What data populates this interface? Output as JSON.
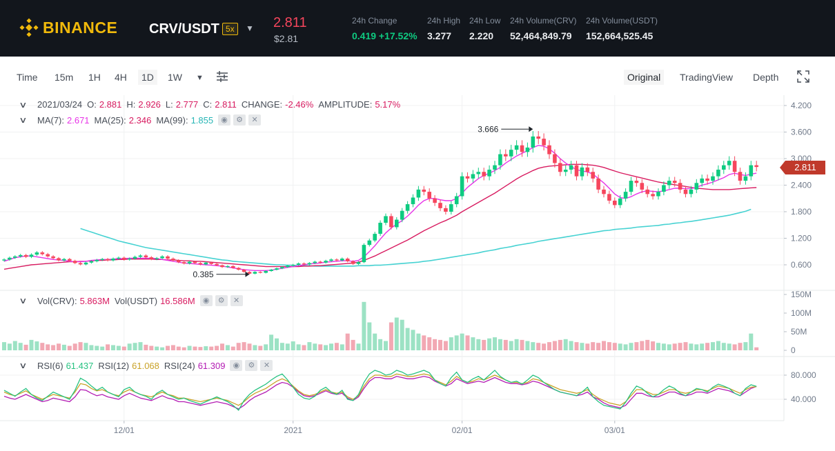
{
  "header": {
    "logo_text": "BINANCE",
    "pair": "CRV/USDT",
    "leverage": "5x",
    "last_price": "2.811",
    "last_price_usd": "$2.81",
    "stats": [
      {
        "label": "24h Change",
        "value": "0.419 +17.52%",
        "up": true
      },
      {
        "label": "24h High",
        "value": "3.277"
      },
      {
        "label": "24h Low",
        "value": "2.220"
      },
      {
        "label": "24h Volume(CRV)",
        "value": "52,464,849.79"
      },
      {
        "label": "24h Volume(USDT)",
        "value": "152,664,525.45"
      }
    ]
  },
  "toolbar": {
    "intervals": [
      "Time",
      "15m",
      "1H",
      "4H",
      "1D",
      "1W"
    ],
    "active_interval": "1D",
    "views": [
      "Original",
      "TradingView",
      "Depth"
    ],
    "active_view": "Original"
  },
  "ohlc_legend": {
    "date": "2021/03/24",
    "o_label": "O:",
    "o": "2.881",
    "h_label": "H:",
    "h": "2.926",
    "l_label": "L:",
    "l": "2.777",
    "c_label": "C:",
    "c": "2.811",
    "change_label": "CHANGE:",
    "change": "-2.46%",
    "amp_label": "AMPLITUDE:",
    "amp": "5.17%"
  },
  "ma_legend": {
    "ma7_label": "MA(7):",
    "ma7": "2.671",
    "ma25_label": "MA(25):",
    "ma25": "2.346",
    "ma99_label": "MA(99):",
    "ma99": "1.855"
  },
  "vol_legend": {
    "vol_crv_label": "Vol(CRV):",
    "vol_crv": "5.863M",
    "vol_usdt_label": "Vol(USDT)",
    "vol_usdt": "16.586M"
  },
  "rsi_legend": {
    "rsi6_label": "RSI(6)",
    "rsi6": "61.437",
    "rsi12_label": "RSI(12)",
    "rsi12": "61.068",
    "rsi24_label": "RSI(24)",
    "rsi24": "61.309"
  },
  "annotations": {
    "high": "3.666",
    "low": "0.385"
  },
  "current_price_tag": "2.811",
  "colors": {
    "up": "#0ecb81",
    "down": "#f6465d",
    "ma7": "#e733e7",
    "ma25": "#d81b60",
    "ma99": "#46d2d2",
    "rsi6": "#26c281",
    "rsi12": "#c9a227",
    "rsi24": "#b31bb3",
    "brand": "#f0b90b"
  },
  "chart_data": {
    "type": "candlestick",
    "price_axis": {
      "ticks": [
        "4.200",
        "3.600",
        "3.000",
        "2.400",
        "1.800",
        "1.200",
        "0.600"
      ],
      "values": [
        4.2,
        3.6,
        3.0,
        2.4,
        1.8,
        1.2,
        0.6
      ]
    },
    "volume_axis": {
      "ticks": [
        "150M",
        "100M",
        "50M",
        "0"
      ],
      "values": [
        150,
        100,
        50,
        0
      ]
    },
    "rsi_axis": {
      "ticks": [
        "80.000",
        "40.000"
      ],
      "values": [
        80,
        40
      ]
    },
    "x_labels": [
      {
        "label": "12/01",
        "index": 22
      },
      {
        "label": "2021",
        "index": 53
      },
      {
        "label": "02/01",
        "index": 84
      },
      {
        "label": "03/01",
        "index": 112
      }
    ],
    "closes": [
      0.72,
      0.76,
      0.79,
      0.82,
      0.78,
      0.83,
      0.88,
      0.84,
      0.79,
      0.75,
      0.7,
      0.73,
      0.69,
      0.64,
      0.61,
      0.65,
      0.68,
      0.71,
      0.73,
      0.7,
      0.74,
      0.76,
      0.72,
      0.74,
      0.78,
      0.81,
      0.77,
      0.73,
      0.75,
      0.79,
      0.74,
      0.7,
      0.66,
      0.63,
      0.67,
      0.64,
      0.61,
      0.65,
      0.62,
      0.59,
      0.55,
      0.57,
      0.53,
      0.49,
      0.44,
      0.4,
      0.44,
      0.42,
      0.46,
      0.49,
      0.52,
      0.55,
      0.58,
      0.6,
      0.63,
      0.61,
      0.64,
      0.67,
      0.65,
      0.69,
      0.72,
      0.7,
      0.74,
      0.68,
      0.62,
      0.66,
      1.05,
      1.15,
      1.3,
      1.55,
      1.7,
      1.45,
      1.62,
      1.82,
      1.97,
      2.12,
      2.3,
      2.25,
      2.1,
      2.0,
      1.88,
      1.8,
      1.97,
      2.15,
      2.6,
      2.55,
      2.65,
      2.7,
      2.6,
      2.75,
      2.85,
      3.1,
      3.05,
      3.2,
      3.3,
      3.15,
      3.25,
      3.5,
      3.45,
      3.3,
      3.1,
      2.9,
      2.7,
      2.75,
      2.85,
      2.6,
      2.8,
      2.7,
      2.55,
      2.3,
      2.2,
      2.05,
      1.95,
      2.1,
      2.25,
      2.5,
      2.45,
      2.3,
      2.2,
      2.15,
      2.25,
      2.4,
      2.5,
      2.45,
      2.3,
      2.2,
      2.3,
      2.45,
      2.55,
      2.5,
      2.6,
      2.75,
      2.85,
      2.95,
      2.7,
      2.5,
      2.6,
      2.85,
      2.811
    ],
    "volume_millions": [
      22,
      18,
      25,
      20,
      15,
      28,
      24,
      20,
      16,
      14,
      18,
      15,
      12,
      18,
      22,
      20,
      14,
      12,
      10,
      16,
      14,
      12,
      10,
      18,
      20,
      22,
      15,
      12,
      10,
      8,
      12,
      14,
      10,
      8,
      12,
      10,
      9,
      11,
      10,
      12,
      18,
      14,
      10,
      20,
      22,
      18,
      14,
      12,
      16,
      42,
      32,
      20,
      18,
      24,
      16,
      14,
      22,
      18,
      16,
      14,
      18,
      20,
      16,
      45,
      28,
      18,
      130,
      75,
      45,
      30,
      25,
      75,
      88,
      82,
      60,
      55,
      45,
      40,
      35,
      30,
      28,
      25,
      35,
      40,
      45,
      40,
      35,
      30,
      28,
      32,
      35,
      30,
      28,
      25,
      30,
      28,
      25,
      22,
      20,
      18,
      22,
      25,
      28,
      30,
      25,
      22,
      20,
      18,
      22,
      20,
      25,
      22,
      20,
      18,
      16,
      20,
      22,
      25,
      28,
      24,
      20,
      18,
      16,
      18,
      20,
      22,
      18,
      16,
      18,
      20,
      22,
      25,
      20,
      18,
      16,
      20,
      22,
      45,
      8
    ],
    "ma7": [
      0.68,
      0.72,
      0.76,
      0.78,
      0.8,
      0.8,
      0.78,
      0.76,
      0.74,
      0.72,
      0.71,
      0.7,
      0.68,
      0.67,
      0.67,
      0.68,
      0.7,
      0.71,
      0.72,
      0.72,
      0.73,
      0.74,
      0.74,
      0.75,
      0.75,
      0.75,
      0.75,
      0.75,
      0.74,
      0.72,
      0.7,
      0.68,
      0.66,
      0.64,
      0.63,
      0.62,
      0.61,
      0.6,
      0.59,
      0.58,
      0.57,
      0.55,
      0.53,
      0.51,
      0.49,
      0.48,
      0.47,
      0.47,
      0.47,
      0.48,
      0.5,
      0.52,
      0.54,
      0.56,
      0.58,
      0.6,
      0.62,
      0.63,
      0.64,
      0.66,
      0.67,
      0.68,
      0.69,
      0.69,
      0.68,
      0.7,
      0.78,
      0.9,
      1.03,
      1.18,
      1.32,
      1.43,
      1.52,
      1.6,
      1.7,
      1.82,
      1.95,
      2.05,
      2.1,
      2.1,
      2.07,
      2.05,
      2.05,
      2.1,
      2.22,
      2.35,
      2.45,
      2.55,
      2.62,
      2.67,
      2.73,
      2.8,
      2.9,
      2.98,
      3.06,
      3.12,
      3.18,
      3.25,
      3.3,
      3.28,
      3.22,
      3.12,
      3.0,
      2.9,
      2.82,
      2.75,
      2.72,
      2.7,
      2.65,
      2.55,
      2.45,
      2.33,
      2.2,
      2.12,
      2.1,
      2.14,
      2.2,
      2.25,
      2.27,
      2.26,
      2.25,
      2.27,
      2.3,
      2.33,
      2.33,
      2.32,
      2.32,
      2.35,
      2.4,
      2.43,
      2.47,
      2.52,
      2.57,
      2.64,
      2.67,
      2.64,
      2.62,
      2.65,
      2.671
    ],
    "ma25": [
      0.5,
      0.52,
      0.54,
      0.56,
      0.58,
      0.6,
      0.61,
      0.62,
      0.63,
      0.64,
      0.65,
      0.66,
      0.67,
      0.67,
      0.68,
      0.68,
      0.69,
      0.7,
      0.7,
      0.71,
      0.71,
      0.72,
      0.72,
      0.73,
      0.73,
      0.73,
      0.73,
      0.73,
      0.72,
      0.72,
      0.71,
      0.71,
      0.7,
      0.69,
      0.69,
      0.68,
      0.68,
      0.67,
      0.66,
      0.65,
      0.64,
      0.63,
      0.62,
      0.61,
      0.6,
      0.59,
      0.58,
      0.57,
      0.56,
      0.56,
      0.56,
      0.56,
      0.56,
      0.56,
      0.56,
      0.57,
      0.57,
      0.58,
      0.58,
      0.59,
      0.6,
      0.61,
      0.62,
      0.63,
      0.64,
      0.66,
      0.7,
      0.75,
      0.8,
      0.86,
      0.92,
      0.98,
      1.04,
      1.1,
      1.16,
      1.23,
      1.3,
      1.37,
      1.43,
      1.49,
      1.55,
      1.6,
      1.66,
      1.72,
      1.8,
      1.87,
      1.94,
      2.01,
      2.08,
      2.15,
      2.22,
      2.3,
      2.38,
      2.46,
      2.54,
      2.61,
      2.67,
      2.73,
      2.78,
      2.81,
      2.83,
      2.84,
      2.85,
      2.86,
      2.87,
      2.87,
      2.87,
      2.86,
      2.85,
      2.83,
      2.8,
      2.76,
      2.72,
      2.68,
      2.65,
      2.62,
      2.59,
      2.56,
      2.53,
      2.5,
      2.47,
      2.45,
      2.43,
      2.41,
      2.39,
      2.37,
      2.35,
      2.33,
      2.32,
      2.31,
      2.3,
      2.3,
      2.3,
      2.3,
      2.31,
      2.32,
      2.33,
      2.34,
      2.346
    ],
    "ma99_start_index": 14,
    "ma99": [
      1.42,
      1.38,
      1.34,
      1.3,
      1.26,
      1.22,
      1.18,
      1.14,
      1.11,
      1.08,
      1.05,
      1.02,
      0.99,
      0.97,
      0.95,
      0.93,
      0.91,
      0.89,
      0.87,
      0.85,
      0.83,
      0.81,
      0.79,
      0.77,
      0.75,
      0.73,
      0.71,
      0.7,
      0.68,
      0.67,
      0.66,
      0.65,
      0.64,
      0.63,
      0.62,
      0.61,
      0.6,
      0.6,
      0.59,
      0.59,
      0.58,
      0.58,
      0.58,
      0.57,
      0.57,
      0.57,
      0.57,
      0.57,
      0.57,
      0.57,
      0.57,
      0.58,
      0.58,
      0.58,
      0.59,
      0.59,
      0.6,
      0.61,
      0.62,
      0.63,
      0.64,
      0.65,
      0.66,
      0.68,
      0.69,
      0.71,
      0.73,
      0.75,
      0.77,
      0.79,
      0.81,
      0.83,
      0.85,
      0.87,
      0.9,
      0.92,
      0.94,
      0.97,
      0.99,
      1.01,
      1.04,
      1.06,
      1.08,
      1.1,
      1.13,
      1.15,
      1.17,
      1.19,
      1.21,
      1.23,
      1.25,
      1.27,
      1.29,
      1.31,
      1.33,
      1.35,
      1.37,
      1.38,
      1.4,
      1.41,
      1.42,
      1.43,
      1.45,
      1.46,
      1.47,
      1.48,
      1.49,
      1.51,
      1.52,
      1.54,
      1.55,
      1.57,
      1.58,
      1.6,
      1.62,
      1.64,
      1.66,
      1.68,
      1.7,
      1.72,
      1.75,
      1.78,
      1.81,
      1.855
    ],
    "rsi6": [
      55,
      50,
      45,
      52,
      58,
      48,
      42,
      38,
      45,
      52,
      48,
      44,
      40,
      55,
      75,
      70,
      62,
      55,
      60,
      52,
      48,
      44,
      56,
      60,
      52,
      48,
      45,
      40,
      50,
      55,
      48,
      44,
      40,
      42,
      38,
      35,
      32,
      36,
      40,
      44,
      40,
      36,
      30,
      22,
      38,
      48,
      55,
      60,
      65,
      72,
      78,
      82,
      72,
      60,
      48,
      42,
      40,
      45,
      55,
      60,
      52,
      48,
      55,
      40,
      38,
      48,
      68,
      82,
      88,
      85,
      80,
      82,
      88,
      85,
      80,
      82,
      85,
      88,
      84,
      72,
      66,
      62,
      76,
      85,
      72,
      68,
      74,
      78,
      72,
      80,
      88,
      78,
      72,
      68,
      70,
      65,
      72,
      80,
      76,
      68,
      62,
      56,
      52,
      50,
      48,
      46,
      52,
      60,
      44,
      36,
      30,
      28,
      26,
      24,
      35,
      50,
      62,
      58,
      50,
      44,
      48,
      56,
      62,
      58,
      50,
      46,
      52,
      58,
      56,
      52,
      60,
      65,
      62,
      58,
      50,
      46,
      58,
      64,
      61.437
    ],
    "rsi12": [
      52,
      48,
      46,
      50,
      54,
      48,
      44,
      40,
      44,
      48,
      46,
      44,
      42,
      52,
      66,
      64,
      58,
      54,
      56,
      52,
      48,
      46,
      52,
      56,
      52,
      48,
      46,
      44,
      48,
      52,
      48,
      46,
      42,
      42,
      40,
      38,
      36,
      38,
      40,
      42,
      40,
      38,
      34,
      30,
      36,
      44,
      50,
      54,
      58,
      64,
      70,
      74,
      70,
      62,
      54,
      48,
      46,
      48,
      52,
      56,
      52,
      50,
      52,
      44,
      40,
      46,
      62,
      74,
      80,
      80,
      78,
      78,
      82,
      80,
      78,
      78,
      80,
      82,
      80,
      72,
      68,
      64,
      70,
      78,
      72,
      68,
      70,
      74,
      72,
      76,
      80,
      76,
      72,
      68,
      68,
      66,
      68,
      74,
      72,
      68,
      64,
      60,
      56,
      54,
      52,
      50,
      52,
      56,
      48,
      42,
      38,
      34,
      32,
      30,
      36,
      46,
      56,
      56,
      52,
      48,
      48,
      52,
      56,
      56,
      52,
      50,
      52,
      56,
      56,
      54,
      58,
      62,
      60,
      58,
      54,
      50,
      56,
      60,
      61.068
    ],
    "rsi24": [
      45,
      42,
      40,
      44,
      48,
      44,
      40,
      36,
      38,
      42,
      40,
      38,
      36,
      44,
      56,
      55,
      50,
      46,
      48,
      44,
      42,
      40,
      46,
      50,
      46,
      42,
      40,
      38,
      42,
      46,
      42,
      40,
      36,
      36,
      34,
      32,
      30,
      32,
      34,
      36,
      34,
      32,
      28,
      24,
      30,
      38,
      44,
      48,
      52,
      58,
      64,
      68,
      66,
      60,
      52,
      46,
      44,
      46,
      50,
      54,
      50,
      48,
      50,
      42,
      38,
      44,
      58,
      70,
      76,
      76,
      74,
      74,
      78,
      76,
      74,
      74,
      76,
      78,
      76,
      70,
      66,
      62,
      66,
      74,
      70,
      66,
      68,
      70,
      68,
      72,
      76,
      72,
      68,
      66,
      66,
      64,
      66,
      70,
      68,
      64,
      60,
      56,
      52,
      50,
      48,
      46,
      48,
      52,
      44,
      40,
      34,
      30,
      28,
      26,
      30,
      40,
      50,
      50,
      46,
      44,
      44,
      48,
      52,
      52,
      48,
      46,
      48,
      52,
      52,
      50,
      54,
      58,
      56,
      54,
      50,
      46,
      52,
      58,
      61.309
    ]
  }
}
